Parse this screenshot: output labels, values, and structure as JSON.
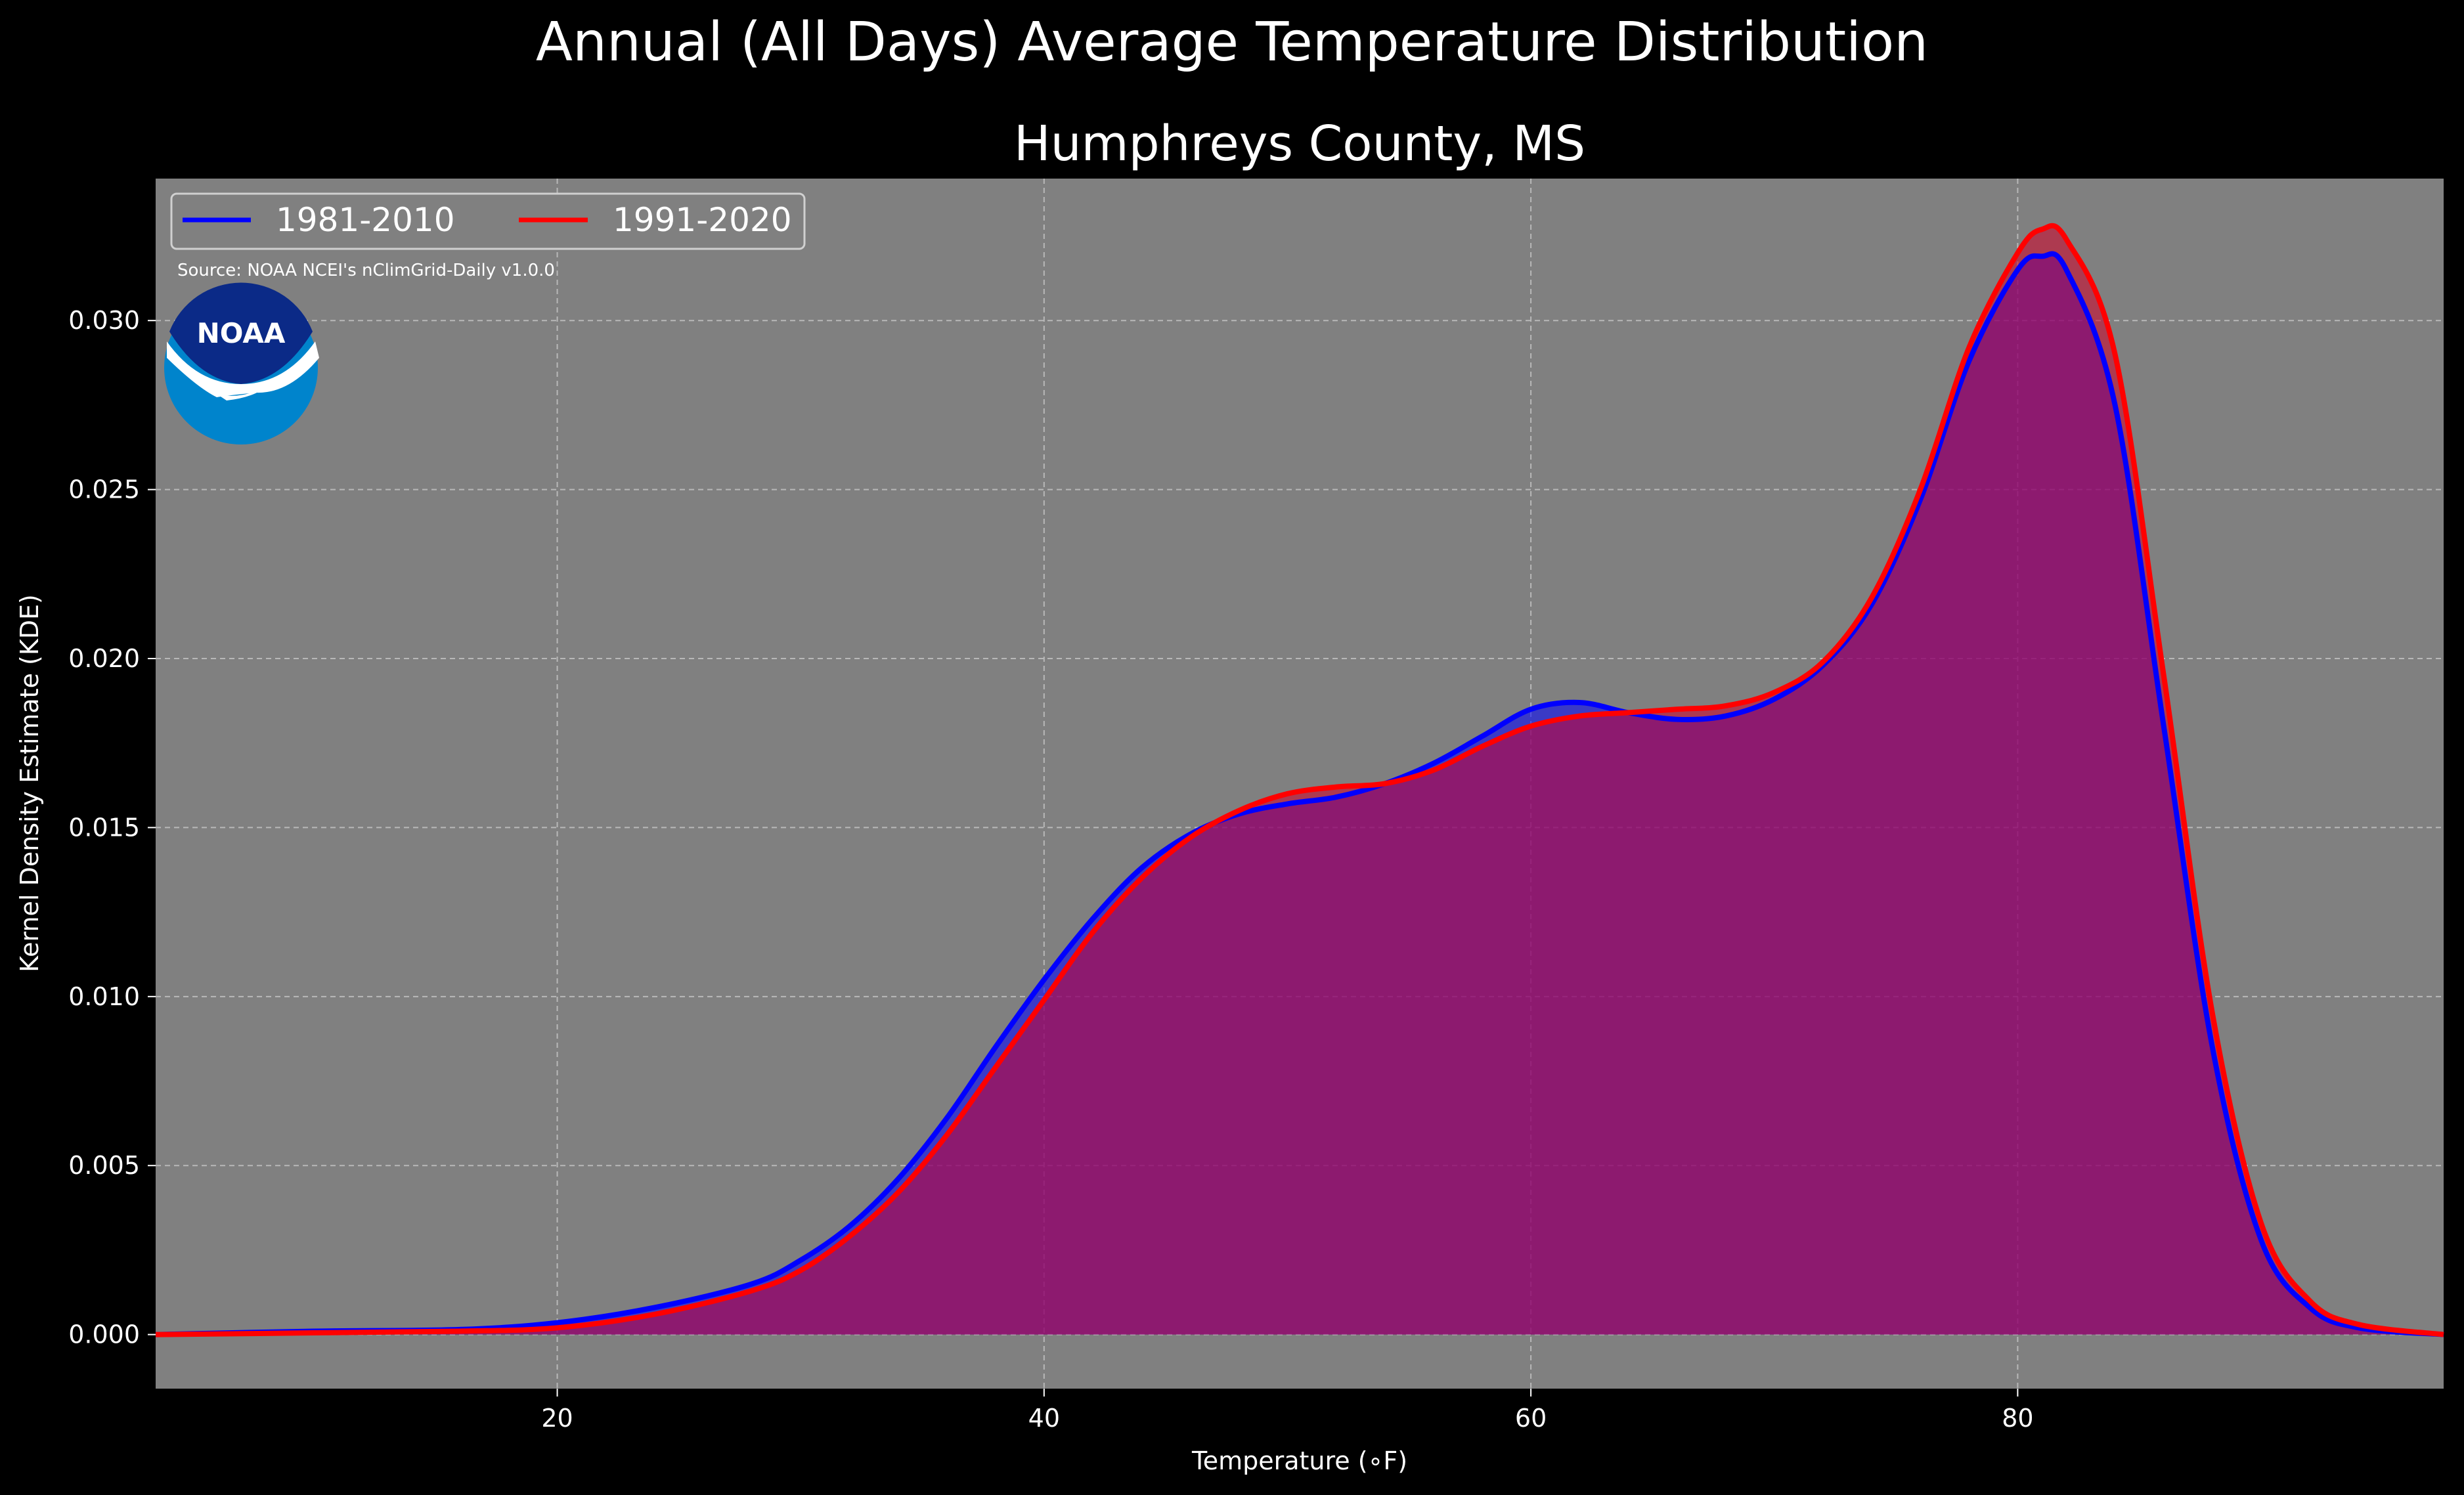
{
  "title": "Annual (All Days) Average Temperature Distribution",
  "source": "Source: NOAA NCEI's nClimGrid-Daily v1.0.0",
  "logo": {
    "text": "NOAA",
    "icon": "noaa-logo-icon"
  },
  "colors": {
    "figure_bg": "#000000",
    "plot_bg": "#808080",
    "grid": "#b8b8b8"
  },
  "chart_data": {
    "type": "area",
    "title": "Humphreys County, MS",
    "xlabel": "Temperature (∘F)",
    "ylabel": "Kernel Density Estimate (KDE)",
    "xlim": [
      3.5,
      97.5
    ],
    "ylim": [
      -0.0016,
      0.0342
    ],
    "xticks": [
      20,
      40,
      60,
      80
    ],
    "yticks": [
      0.0,
      0.005,
      0.01,
      0.015,
      0.02,
      0.025,
      0.03
    ],
    "ytick_labels": [
      "0.000",
      "0.005",
      "0.010",
      "0.015",
      "0.020",
      "0.025",
      "0.030"
    ],
    "grid": true,
    "legend_position": "top-left",
    "series": [
      {
        "name": "1981-2010",
        "color": "#0000ff",
        "fill": "rgba(0,0,255,0.55)",
        "points": [
          [
            3.5,
            0.0
          ],
          [
            10,
            0.0001
          ],
          [
            16,
            0.00015
          ],
          [
            20,
            0.00035
          ],
          [
            24,
            0.0008
          ],
          [
            28,
            0.0015
          ],
          [
            30,
            0.0022
          ],
          [
            32,
            0.0032
          ],
          [
            34,
            0.0046
          ],
          [
            36,
            0.0064
          ],
          [
            38,
            0.0085
          ],
          [
            40,
            0.0105
          ],
          [
            42,
            0.0123
          ],
          [
            44,
            0.0138
          ],
          [
            46,
            0.0148
          ],
          [
            48,
            0.0154
          ],
          [
            50,
            0.0157
          ],
          [
            52,
            0.0159
          ],
          [
            54,
            0.0163
          ],
          [
            56,
            0.0169
          ],
          [
            58,
            0.0177
          ],
          [
            60,
            0.0185
          ],
          [
            62,
            0.0187
          ],
          [
            64,
            0.0184
          ],
          [
            66,
            0.0182
          ],
          [
            68,
            0.0183
          ],
          [
            70,
            0.0188
          ],
          [
            72,
            0.0198
          ],
          [
            74,
            0.0216
          ],
          [
            76,
            0.0247
          ],
          [
            78,
            0.0288
          ],
          [
            80,
            0.0315
          ],
          [
            81,
            0.0319
          ],
          [
            82,
            0.0315
          ],
          [
            84,
            0.0275
          ],
          [
            86,
            0.018
          ],
          [
            88,
            0.0085
          ],
          [
            90,
            0.0028
          ],
          [
            92,
            0.0008
          ],
          [
            94,
            0.0002
          ],
          [
            97.5,
            0.0
          ]
        ]
      },
      {
        "name": "1991-2020",
        "color": "#ff0000",
        "fill": "rgba(210,0,40,0.55)",
        "points": [
          [
            3.5,
            0.0
          ],
          [
            10,
            5e-05
          ],
          [
            16,
            0.0001
          ],
          [
            20,
            0.0002
          ],
          [
            24,
            0.0006
          ],
          [
            28,
            0.0013
          ],
          [
            30,
            0.0019
          ],
          [
            32,
            0.0029
          ],
          [
            34,
            0.0042
          ],
          [
            36,
            0.0059
          ],
          [
            38,
            0.0079
          ],
          [
            40,
            0.0099
          ],
          [
            42,
            0.0119
          ],
          [
            44,
            0.0135
          ],
          [
            46,
            0.0147
          ],
          [
            48,
            0.0155
          ],
          [
            50,
            0.016
          ],
          [
            52,
            0.0162
          ],
          [
            54,
            0.0163
          ],
          [
            56,
            0.0167
          ],
          [
            58,
            0.0174
          ],
          [
            60,
            0.018
          ],
          [
            62,
            0.0183
          ],
          [
            64,
            0.0184
          ],
          [
            66,
            0.0185
          ],
          [
            68,
            0.0186
          ],
          [
            70,
            0.019
          ],
          [
            72,
            0.0199
          ],
          [
            74,
            0.0218
          ],
          [
            76,
            0.025
          ],
          [
            78,
            0.0292
          ],
          [
            80,
            0.032
          ],
          [
            81,
            0.0327
          ],
          [
            82,
            0.0324
          ],
          [
            84,
            0.029
          ],
          [
            86,
            0.0195
          ],
          [
            88,
            0.0095
          ],
          [
            90,
            0.0033
          ],
          [
            92,
            0.001
          ],
          [
            94,
            0.0003
          ],
          [
            97.5,
            0.0
          ]
        ]
      }
    ]
  }
}
